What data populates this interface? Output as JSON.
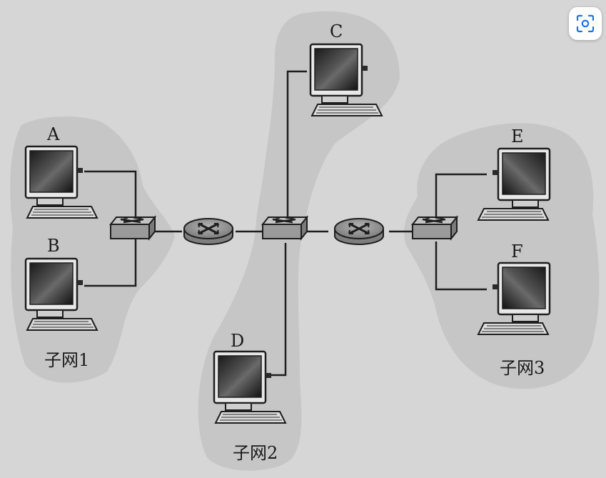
{
  "diagram": {
    "hosts": [
      {
        "id": "A",
        "label": "A"
      },
      {
        "id": "B",
        "label": "B"
      },
      {
        "id": "C",
        "label": "C"
      },
      {
        "id": "D",
        "label": "D"
      },
      {
        "id": "E",
        "label": "E"
      },
      {
        "id": "F",
        "label": "F"
      }
    ],
    "subnets": [
      {
        "id": "subnet1",
        "label": "子网1"
      },
      {
        "id": "subnet2",
        "label": "子网2"
      },
      {
        "id": "subnet3",
        "label": "子网3"
      }
    ],
    "devices": {
      "switches": [
        "switch-1",
        "switch-2",
        "switch-3"
      ],
      "routers": [
        "router-1",
        "router-2"
      ]
    }
  },
  "toolbar": {
    "lens_icon": "visual-search-icon"
  },
  "colors": {
    "background": "#d6d6d6",
    "subnet_fill": "#c6c6c6",
    "device_fill": "#9a9a9a",
    "stroke": "#1e1e1e"
  }
}
